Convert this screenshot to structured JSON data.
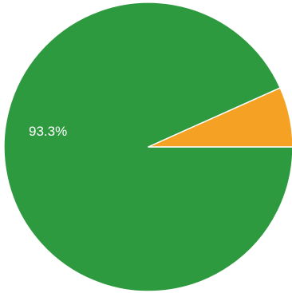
{
  "chart_data": {
    "type": "pie",
    "slices": [
      {
        "label": "93.3%",
        "value": 93.3,
        "color": "#2e9a3f"
      },
      {
        "label": "",
        "value": 6.7,
        "color": "#f4a124"
      }
    ],
    "start_angle_deg": 0,
    "direction": "clockwise",
    "legend": "none"
  }
}
